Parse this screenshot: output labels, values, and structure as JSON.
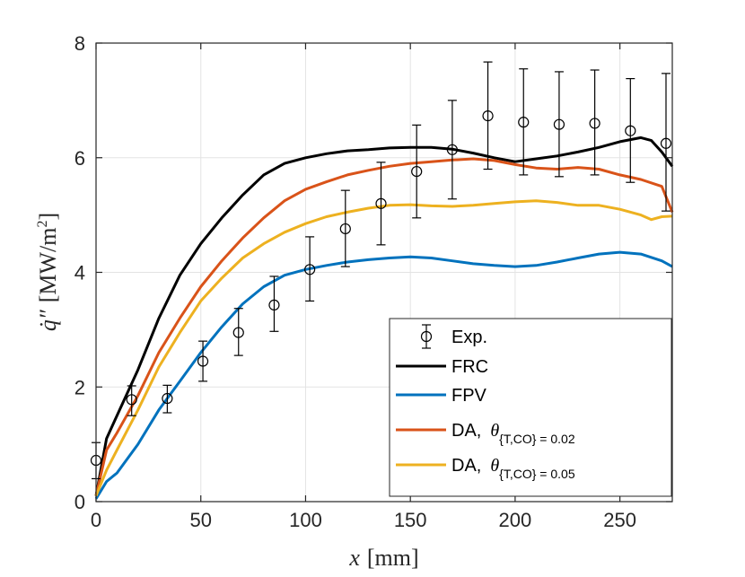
{
  "chart_data": {
    "type": "line",
    "title": "",
    "xlabel_var": "x",
    "xlabel_unit": "[mm]",
    "ylabel_var": "q̇″",
    "ylabel_unit": "[MW/m",
    "ylabel_sup": "2",
    "ylabel_close": "]",
    "xlim": [
      0,
      275
    ],
    "ylim": [
      0,
      8
    ],
    "xticks": [
      0,
      50,
      100,
      150,
      200,
      250
    ],
    "yticks": [
      0,
      2,
      4,
      6,
      8
    ],
    "xtick_labels": [
      "0",
      "50",
      "100",
      "150",
      "200",
      "250"
    ],
    "ytick_labels": [
      "0",
      "2",
      "4",
      "6",
      "8"
    ],
    "grid": true,
    "legend_position": "bottom-right",
    "experimental": {
      "name": "Exp.",
      "x": [
        0,
        17,
        34,
        51,
        68,
        85,
        102,
        119,
        136,
        153,
        170,
        187,
        204,
        221,
        238,
        255,
        272
      ],
      "y": [
        0.72,
        1.78,
        1.8,
        2.45,
        2.95,
        3.43,
        4.05,
        4.76,
        5.2,
        5.76,
        6.14,
        6.73,
        6.62,
        6.58,
        6.6,
        6.47,
        6.25
      ],
      "lower": [
        0.4,
        1.5,
        1.55,
        2.1,
        2.55,
        2.97,
        3.5,
        4.1,
        4.48,
        4.95,
        5.28,
        5.8,
        5.7,
        5.67,
        5.7,
        5.57,
        5.07
      ],
      "upper": [
        1.03,
        2.02,
        2.03,
        2.8,
        3.37,
        3.93,
        4.62,
        5.43,
        5.92,
        6.57,
        7.0,
        7.67,
        7.55,
        7.5,
        7.53,
        7.38,
        7.47
      ]
    },
    "series": [
      {
        "name": "FRC",
        "color": "#000000",
        "x": [
          0,
          5,
          10,
          20,
          30,
          40,
          50,
          60,
          70,
          80,
          90,
          100,
          110,
          120,
          130,
          140,
          150,
          160,
          170,
          180,
          190,
          200,
          210,
          220,
          230,
          240,
          250,
          260,
          265,
          270,
          275
        ],
        "y": [
          0.1,
          1.1,
          1.5,
          2.3,
          3.2,
          3.95,
          4.5,
          4.95,
          5.35,
          5.7,
          5.9,
          6.0,
          6.07,
          6.12,
          6.14,
          6.17,
          6.18,
          6.18,
          6.15,
          6.08,
          6.0,
          5.93,
          5.98,
          6.03,
          6.1,
          6.18,
          6.28,
          6.35,
          6.3,
          6.1,
          5.85
        ]
      },
      {
        "name": "FPV",
        "color": "#0072BD",
        "x": [
          0,
          5,
          10,
          20,
          30,
          40,
          50,
          60,
          70,
          80,
          90,
          100,
          110,
          120,
          130,
          140,
          150,
          160,
          170,
          180,
          190,
          200,
          210,
          220,
          230,
          240,
          250,
          260,
          270,
          275
        ],
        "y": [
          0.05,
          0.35,
          0.5,
          1.0,
          1.6,
          2.1,
          2.6,
          3.05,
          3.45,
          3.75,
          3.95,
          4.05,
          4.12,
          4.18,
          4.22,
          4.25,
          4.27,
          4.25,
          4.2,
          4.15,
          4.12,
          4.1,
          4.12,
          4.18,
          4.25,
          4.32,
          4.35,
          4.32,
          4.2,
          4.1
        ]
      },
      {
        "name_prefix": "DA,",
        "name_theta": "θ",
        "name_sub": "{T,CO} = 0.02",
        "color": "#D95319",
        "x": [
          0,
          5,
          10,
          20,
          30,
          40,
          50,
          60,
          70,
          80,
          90,
          100,
          110,
          120,
          130,
          140,
          150,
          160,
          170,
          180,
          190,
          200,
          210,
          220,
          230,
          240,
          250,
          260,
          270,
          275
        ],
        "y": [
          0.1,
          0.9,
          1.2,
          1.85,
          2.6,
          3.2,
          3.75,
          4.2,
          4.6,
          4.95,
          5.25,
          5.45,
          5.58,
          5.7,
          5.78,
          5.85,
          5.9,
          5.93,
          5.96,
          5.98,
          5.95,
          5.88,
          5.82,
          5.8,
          5.83,
          5.8,
          5.7,
          5.62,
          5.5,
          5.05
        ]
      },
      {
        "name_prefix": "DA,",
        "name_theta": "θ",
        "name_sub": "{T,CO} = 0.05",
        "color": "#EDB120",
        "x": [
          0,
          5,
          10,
          20,
          30,
          40,
          50,
          60,
          70,
          80,
          90,
          100,
          110,
          120,
          130,
          140,
          150,
          160,
          170,
          180,
          190,
          200,
          210,
          220,
          230,
          240,
          250,
          260,
          265,
          270,
          275
        ],
        "y": [
          0.1,
          0.55,
          0.9,
          1.6,
          2.35,
          2.95,
          3.5,
          3.9,
          4.25,
          4.5,
          4.7,
          4.85,
          4.97,
          5.05,
          5.12,
          5.17,
          5.18,
          5.16,
          5.15,
          5.17,
          5.2,
          5.23,
          5.25,
          5.22,
          5.17,
          5.17,
          5.1,
          5.0,
          4.92,
          4.97,
          4.98
        ]
      }
    ]
  }
}
